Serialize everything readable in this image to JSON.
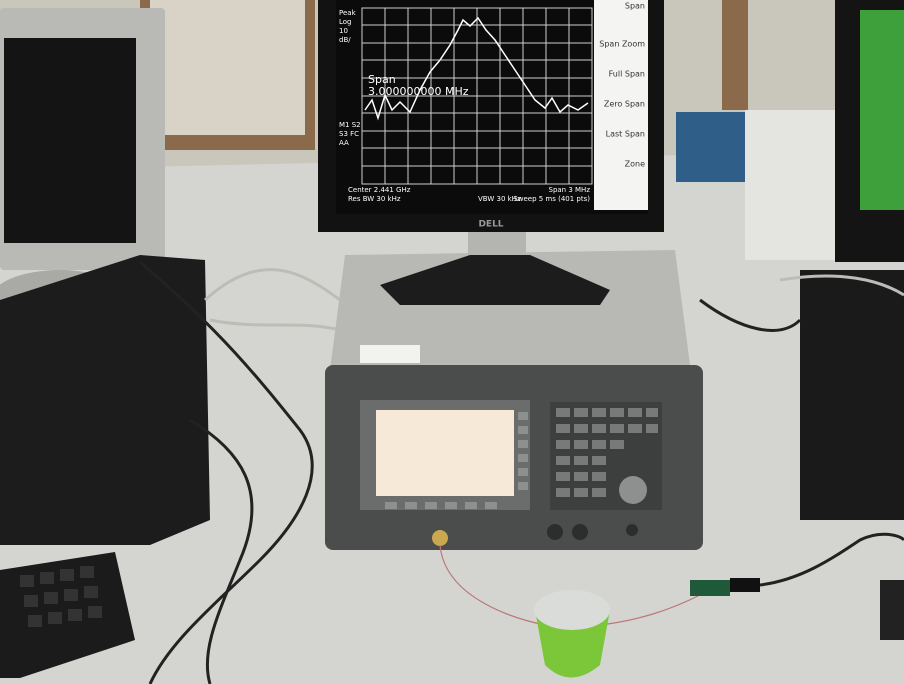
{
  "monitor": {
    "header": [
      "Peak",
      "Log",
      "10",
      "dB/"
    ],
    "markers": [
      "M1 S2",
      "S3 FC",
      "AA"
    ],
    "span_readout": {
      "label": "Span",
      "value": "3.000000000 MHz"
    },
    "footer_left": [
      "Center 2.441 GHz",
      "Res BW 30 kHz"
    ],
    "footer_mid": "VBW 30 kHz",
    "footer_right": [
      "Span 3 MHz",
      "Sweep 5 ms (401 pts)"
    ],
    "softkeys": [
      "Span",
      "Span Zoom",
      "Full Span",
      "Zero Span",
      "Last Span",
      "Zone"
    ],
    "brand": "DELL"
  }
}
